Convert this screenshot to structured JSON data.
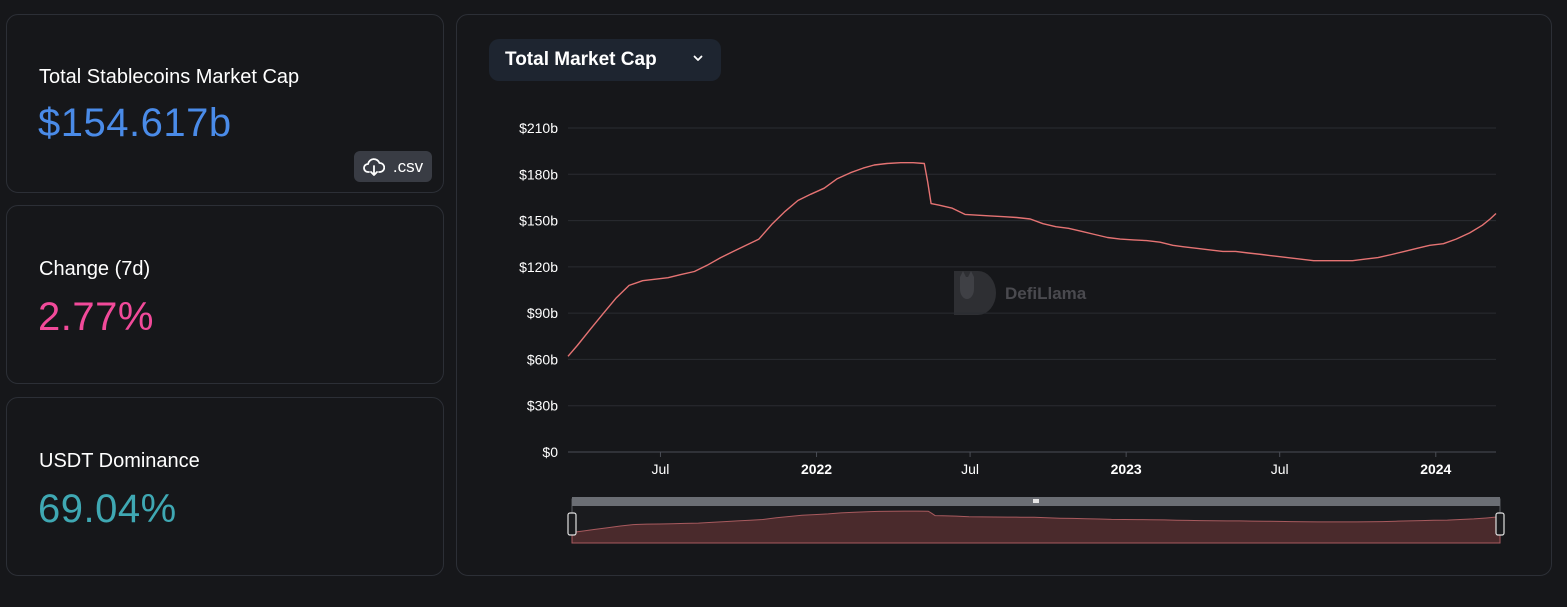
{
  "cards": {
    "market_cap": {
      "label": "Total Stablecoins Market Cap",
      "value": "$154.617b",
      "csv_label": ".csv"
    },
    "change": {
      "label": "Change (7d)",
      "value": "2.77%"
    },
    "dominance": {
      "label": "USDT Dominance",
      "value": "69.04%"
    }
  },
  "chart_header": {
    "dropdown_label": "Total Market Cap"
  },
  "watermark": "DefiLlama",
  "colors": {
    "market_cap_value": "#4a8be8",
    "change_value": "#f24a9a",
    "dominance_value": "#3fa8b3",
    "line": "#e57373"
  },
  "icons": [
    "cloud-download-icon",
    "chevron-down-icon",
    "llama-logo-icon"
  ],
  "chart_data": {
    "type": "line",
    "title": "",
    "xlabel": "",
    "ylabel": "",
    "x_tick_labels": [
      {
        "label": "Jul",
        "date": "2021-07-01",
        "bold": false
      },
      {
        "label": "2022",
        "date": "2022-01-01",
        "bold": true
      },
      {
        "label": "Jul",
        "date": "2022-07-01",
        "bold": false
      },
      {
        "label": "2023",
        "date": "2023-01-01",
        "bold": true
      },
      {
        "label": "Jul",
        "date": "2023-07-01",
        "bold": false
      },
      {
        "label": "2024",
        "date": "2024-01-01",
        "bold": true
      }
    ],
    "y_tick_labels": [
      "$0",
      "$30b",
      "$60b",
      "$90b",
      "$120b",
      "$150b",
      "$180b",
      "$210b"
    ],
    "ylim": [
      0,
      210
    ],
    "y_unit": "billion USD",
    "xlim": [
      "2021-03-14",
      "2024-03-12"
    ],
    "grid": true,
    "series": [
      {
        "color": "#e57373",
        "points": [
          [
            "2021-03-14",
            62
          ],
          [
            "2021-03-25",
            69
          ],
          [
            "2021-04-10",
            80
          ],
          [
            "2021-04-25",
            90
          ],
          [
            "2021-05-10",
            100
          ],
          [
            "2021-05-25",
            108
          ],
          [
            "2021-06-10",
            111
          ],
          [
            "2021-06-25",
            112
          ],
          [
            "2021-07-10",
            113
          ],
          [
            "2021-07-25",
            115
          ],
          [
            "2021-08-10",
            117
          ],
          [
            "2021-08-25",
            121
          ],
          [
            "2021-09-10",
            126
          ],
          [
            "2021-09-25",
            130
          ],
          [
            "2021-10-10",
            134
          ],
          [
            "2021-10-25",
            138
          ],
          [
            "2021-11-10",
            148
          ],
          [
            "2021-11-25",
            156
          ],
          [
            "2021-12-10",
            163
          ],
          [
            "2021-12-25",
            167
          ],
          [
            "2022-01-10",
            171
          ],
          [
            "2022-01-25",
            177
          ],
          [
            "2022-02-10",
            181
          ],
          [
            "2022-02-25",
            184
          ],
          [
            "2022-03-10",
            186
          ],
          [
            "2022-03-25",
            187
          ],
          [
            "2022-04-10",
            187.5
          ],
          [
            "2022-04-25",
            187.5
          ],
          [
            "2022-05-08",
            187
          ],
          [
            "2022-05-12",
            175
          ],
          [
            "2022-05-16",
            161
          ],
          [
            "2022-05-25",
            160
          ],
          [
            "2022-06-10",
            158
          ],
          [
            "2022-06-25",
            154
          ],
          [
            "2022-07-10",
            153.5
          ],
          [
            "2022-07-25",
            153
          ],
          [
            "2022-08-10",
            152.5
          ],
          [
            "2022-08-25",
            152
          ],
          [
            "2022-09-10",
            151
          ],
          [
            "2022-09-25",
            148
          ],
          [
            "2022-10-10",
            146
          ],
          [
            "2022-10-25",
            145
          ],
          [
            "2022-11-10",
            143
          ],
          [
            "2022-11-25",
            141
          ],
          [
            "2022-12-10",
            139
          ],
          [
            "2022-12-25",
            138
          ],
          [
            "2023-01-10",
            137.5
          ],
          [
            "2023-01-25",
            137
          ],
          [
            "2023-02-10",
            136
          ],
          [
            "2023-02-25",
            134
          ],
          [
            "2023-03-10",
            133
          ],
          [
            "2023-03-25",
            132
          ],
          [
            "2023-04-10",
            131
          ],
          [
            "2023-04-25",
            130
          ],
          [
            "2023-05-10",
            130
          ],
          [
            "2023-05-25",
            129
          ],
          [
            "2023-06-10",
            128
          ],
          [
            "2023-06-25",
            127
          ],
          [
            "2023-07-10",
            126
          ],
          [
            "2023-07-25",
            125
          ],
          [
            "2023-08-10",
            124
          ],
          [
            "2023-08-25",
            124
          ],
          [
            "2023-09-10",
            124
          ],
          [
            "2023-09-25",
            124
          ],
          [
            "2023-10-10",
            125
          ],
          [
            "2023-10-25",
            126
          ],
          [
            "2023-11-10",
            128
          ],
          [
            "2023-11-25",
            130
          ],
          [
            "2023-12-10",
            132
          ],
          [
            "2023-12-25",
            134
          ],
          [
            "2024-01-10",
            135
          ],
          [
            "2024-01-25",
            138
          ],
          [
            "2024-02-10",
            142
          ],
          [
            "2024-02-25",
            147
          ],
          [
            "2024-03-05",
            151
          ],
          [
            "2024-03-12",
            154.6
          ]
        ]
      }
    ]
  }
}
